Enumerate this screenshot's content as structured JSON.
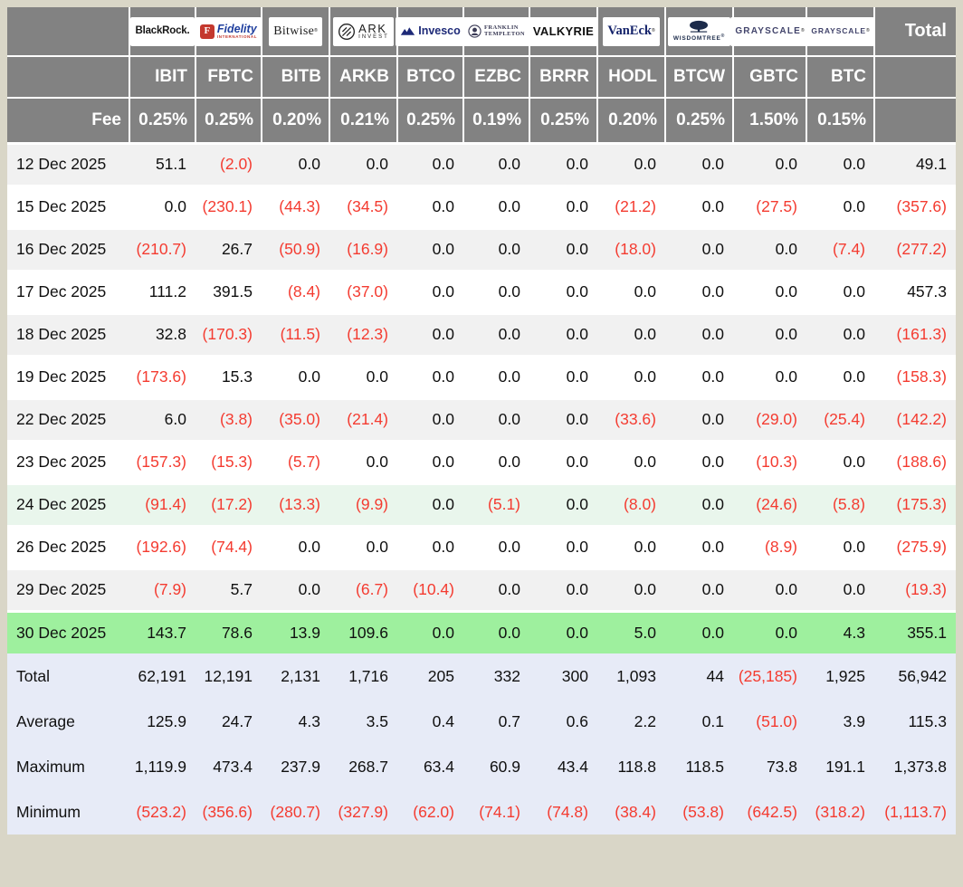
{
  "table": {
    "header": {
      "fee_label": "Fee",
      "total_label": "Total"
    },
    "columns": [
      {
        "ticker": "",
        "fee": ""
      },
      {
        "ticker": "IBIT",
        "fee": "0.25%",
        "issuer": "BlackRock"
      },
      {
        "ticker": "FBTC",
        "fee": "0.25%",
        "issuer": "Fidelity"
      },
      {
        "ticker": "BITB",
        "fee": "0.20%",
        "issuer": "Bitwise"
      },
      {
        "ticker": "ARKB",
        "fee": "0.21%",
        "issuer": "ARK Invest"
      },
      {
        "ticker": "BTCO",
        "fee": "0.25%",
        "issuer": "Invesco"
      },
      {
        "ticker": "EZBC",
        "fee": "0.19%",
        "issuer": "Franklin Templeton"
      },
      {
        "ticker": "BRRR",
        "fee": "0.25%",
        "issuer": "Valkyrie"
      },
      {
        "ticker": "HODL",
        "fee": "0.20%",
        "issuer": "VanEck"
      },
      {
        "ticker": "BTCW",
        "fee": "0.25%",
        "issuer": "WisdomTree"
      },
      {
        "ticker": "GBTC",
        "fee": "1.50%",
        "issuer": "Grayscale"
      },
      {
        "ticker": "BTC",
        "fee": "0.15%",
        "issuer": "Grayscale"
      }
    ],
    "rows": [
      {
        "label": "12 Dec 2025",
        "type": "striped",
        "values": [
          "51.1",
          "(2.0)",
          "0.0",
          "0.0",
          "0.0",
          "0.0",
          "0.0",
          "0.0",
          "0.0",
          "0.0",
          "0.0",
          "49.1"
        ]
      },
      {
        "label": "15 Dec 2025",
        "type": "plain",
        "values": [
          "0.0",
          "(230.1)",
          "(44.3)",
          "(34.5)",
          "0.0",
          "0.0",
          "0.0",
          "(21.2)",
          "0.0",
          "(27.5)",
          "0.0",
          "(357.6)"
        ]
      },
      {
        "label": "16 Dec 2025",
        "type": "striped",
        "values": [
          "(210.7)",
          "26.7",
          "(50.9)",
          "(16.9)",
          "0.0",
          "0.0",
          "0.0",
          "(18.0)",
          "0.0",
          "0.0",
          "(7.4)",
          "(277.2)"
        ]
      },
      {
        "label": "17 Dec 2025",
        "type": "plain",
        "values": [
          "111.2",
          "391.5",
          "(8.4)",
          "(37.0)",
          "0.0",
          "0.0",
          "0.0",
          "0.0",
          "0.0",
          "0.0",
          "0.0",
          "457.3"
        ]
      },
      {
        "label": "18 Dec 2025",
        "type": "striped",
        "values": [
          "32.8",
          "(170.3)",
          "(11.5)",
          "(12.3)",
          "0.0",
          "0.0",
          "0.0",
          "0.0",
          "0.0",
          "0.0",
          "0.0",
          "(161.3)"
        ]
      },
      {
        "label": "19 Dec 2025",
        "type": "plain",
        "values": [
          "(173.6)",
          "15.3",
          "0.0",
          "0.0",
          "0.0",
          "0.0",
          "0.0",
          "0.0",
          "0.0",
          "0.0",
          "0.0",
          "(158.3)"
        ]
      },
      {
        "label": "22 Dec 2025",
        "type": "striped",
        "values": [
          "6.0",
          "(3.8)",
          "(35.0)",
          "(21.4)",
          "0.0",
          "0.0",
          "0.0",
          "(33.6)",
          "0.0",
          "(29.0)",
          "(25.4)",
          "(142.2)"
        ]
      },
      {
        "label": "23 Dec 2025",
        "type": "plain",
        "values": [
          "(157.3)",
          "(15.3)",
          "(5.7)",
          "0.0",
          "0.0",
          "0.0",
          "0.0",
          "0.0",
          "0.0",
          "(10.3)",
          "0.0",
          "(188.6)"
        ]
      },
      {
        "label": "24 Dec 2025",
        "type": "tint",
        "values": [
          "(91.4)",
          "(17.2)",
          "(13.3)",
          "(9.9)",
          "0.0",
          "(5.1)",
          "0.0",
          "(8.0)",
          "0.0",
          "(24.6)",
          "(5.8)",
          "(175.3)"
        ]
      },
      {
        "label": "26 Dec 2025",
        "type": "plain",
        "values": [
          "(192.6)",
          "(74.4)",
          "0.0",
          "0.0",
          "0.0",
          "0.0",
          "0.0",
          "0.0",
          "0.0",
          "(8.9)",
          "0.0",
          "(275.9)"
        ]
      },
      {
        "label": "29 Dec 2025",
        "type": "striped",
        "values": [
          "(7.9)",
          "5.7",
          "0.0",
          "(6.7)",
          "(10.4)",
          "0.0",
          "0.0",
          "0.0",
          "0.0",
          "0.0",
          "0.0",
          "(19.3)"
        ]
      },
      {
        "label": "30 Dec 2025",
        "type": "green",
        "values": [
          "143.7",
          "78.6",
          "13.9",
          "109.6",
          "0.0",
          "0.0",
          "0.0",
          "5.0",
          "0.0",
          "0.0",
          "4.3",
          "355.1"
        ]
      },
      {
        "label": "Total",
        "type": "summary",
        "values": [
          "62,191",
          "12,191",
          "2,131",
          "1,716",
          "205",
          "332",
          "300",
          "1,093",
          "44",
          "(25,185)",
          "1,925",
          "56,942"
        ]
      },
      {
        "label": "Average",
        "type": "summary",
        "values": [
          "125.9",
          "24.7",
          "4.3",
          "3.5",
          "0.4",
          "0.7",
          "0.6",
          "2.2",
          "0.1",
          "(51.0)",
          "3.9",
          "115.3"
        ]
      },
      {
        "label": "Maximum",
        "type": "summary",
        "values": [
          "1,119.9",
          "473.4",
          "237.9",
          "268.7",
          "63.4",
          "60.9",
          "43.4",
          "118.8",
          "118.5",
          "73.8",
          "191.1",
          "1,373.8"
        ]
      },
      {
        "label": "Minimum",
        "type": "summary",
        "values": [
          "(523.2)",
          "(356.6)",
          "(280.7)",
          "(327.9)",
          "(62.0)",
          "(74.1)",
          "(74.8)",
          "(38.4)",
          "(53.8)",
          "(642.5)",
          "(318.2)",
          "(1,113.7)"
        ]
      }
    ]
  },
  "logos": {
    "blackrock": {
      "text": "BlackRock."
    },
    "fidelity": {
      "letter": "F",
      "text": "Fidelity",
      "sub": "INTERNATIONAL"
    },
    "bitwise": {
      "text": "Bitwise",
      "mark": "®"
    },
    "ark": {
      "line1": "ARK",
      "line2": "INVEST"
    },
    "invesco": {
      "text": "Invesco"
    },
    "franklin": {
      "line1": "FRANKLIN",
      "line2": "TEMPLETON"
    },
    "valkyrie": {
      "text": "VALKYRIE"
    },
    "vaneck": {
      "text": "VanEck",
      "mark": "®"
    },
    "wisdomtree": {
      "text": "WISDOMTREE",
      "mark": "®"
    },
    "grayscale": {
      "text": "GRAYSCALE",
      "mark": "®"
    },
    "grayscale_sm": {
      "text": "GRAYSCALE",
      "mark": "®"
    }
  },
  "colors": {
    "frame": "#d9d6c7",
    "header_gray": "#828282",
    "striped_row": "#f1f1f1",
    "tint_green_row": "#e9f6ec",
    "highlight_green_row": "#9ef09e",
    "summary_row": "#e7ebf7",
    "negative_red": "#f43b30"
  },
  "chart_data": {
    "type": "table",
    "columns": [
      "IBIT",
      "FBTC",
      "BITB",
      "ARKB",
      "BTCO",
      "EZBC",
      "BRRR",
      "HODL",
      "BTCW",
      "GBTC",
      "BTC",
      "Total"
    ],
    "fees": [
      "0.25%",
      "0.25%",
      "0.20%",
      "0.21%",
      "0.25%",
      "0.19%",
      "0.25%",
      "0.20%",
      "0.25%",
      "1.50%",
      "0.15%"
    ],
    "row_labels": [
      "12 Dec 2025",
      "15 Dec 2025",
      "16 Dec 2025",
      "17 Dec 2025",
      "18 Dec 2025",
      "19 Dec 2025",
      "22 Dec 2025",
      "23 Dec 2025",
      "24 Dec 2025",
      "26 Dec 2025",
      "29 Dec 2025",
      "30 Dec 2025",
      "Total",
      "Average",
      "Maximum",
      "Minimum"
    ],
    "values": [
      [
        51.1,
        -2.0,
        0.0,
        0.0,
        0.0,
        0.0,
        0.0,
        0.0,
        0.0,
        0.0,
        0.0,
        49.1
      ],
      [
        0.0,
        -230.1,
        -44.3,
        -34.5,
        0.0,
        0.0,
        0.0,
        -21.2,
        0.0,
        -27.5,
        0.0,
        -357.6
      ],
      [
        -210.7,
        26.7,
        -50.9,
        -16.9,
        0.0,
        0.0,
        0.0,
        -18.0,
        0.0,
        0.0,
        -7.4,
        -277.2
      ],
      [
        111.2,
        391.5,
        -8.4,
        -37.0,
        0.0,
        0.0,
        0.0,
        0.0,
        0.0,
        0.0,
        0.0,
        457.3
      ],
      [
        32.8,
        -170.3,
        -11.5,
        -12.3,
        0.0,
        0.0,
        0.0,
        0.0,
        0.0,
        0.0,
        0.0,
        -161.3
      ],
      [
        -173.6,
        15.3,
        0.0,
        0.0,
        0.0,
        0.0,
        0.0,
        0.0,
        0.0,
        0.0,
        0.0,
        -158.3
      ],
      [
        6.0,
        -3.8,
        -35.0,
        -21.4,
        0.0,
        0.0,
        0.0,
        -33.6,
        0.0,
        -29.0,
        -25.4,
        -142.2
      ],
      [
        -157.3,
        -15.3,
        -5.7,
        0.0,
        0.0,
        0.0,
        0.0,
        0.0,
        0.0,
        -10.3,
        0.0,
        -188.6
      ],
      [
        -91.4,
        -17.2,
        -13.3,
        -9.9,
        0.0,
        -5.1,
        0.0,
        -8.0,
        0.0,
        -24.6,
        -5.8,
        -175.3
      ],
      [
        -192.6,
        -74.4,
        0.0,
        0.0,
        0.0,
        0.0,
        0.0,
        0.0,
        0.0,
        -8.9,
        0.0,
        -275.9
      ],
      [
        -7.9,
        5.7,
        0.0,
        -6.7,
        -10.4,
        0.0,
        0.0,
        0.0,
        0.0,
        0.0,
        0.0,
        -19.3
      ],
      [
        143.7,
        78.6,
        13.9,
        109.6,
        0.0,
        0.0,
        0.0,
        5.0,
        0.0,
        0.0,
        4.3,
        355.1
      ],
      [
        62191,
        12191,
        2131,
        1716,
        205,
        332,
        300,
        1093,
        44,
        -25185,
        1925,
        56942
      ],
      [
        125.9,
        24.7,
        4.3,
        3.5,
        0.4,
        0.7,
        0.6,
        2.2,
        0.1,
        -51.0,
        3.9,
        115.3
      ],
      [
        1119.9,
        473.4,
        237.9,
        268.7,
        63.4,
        60.9,
        43.4,
        118.8,
        118.5,
        73.8,
        191.1,
        1373.8
      ],
      [
        -523.2,
        -356.6,
        -280.7,
        -327.9,
        -62.0,
        -74.1,
        -74.8,
        -38.4,
        -53.8,
        -642.5,
        -318.2,
        -1113.7
      ]
    ]
  }
}
